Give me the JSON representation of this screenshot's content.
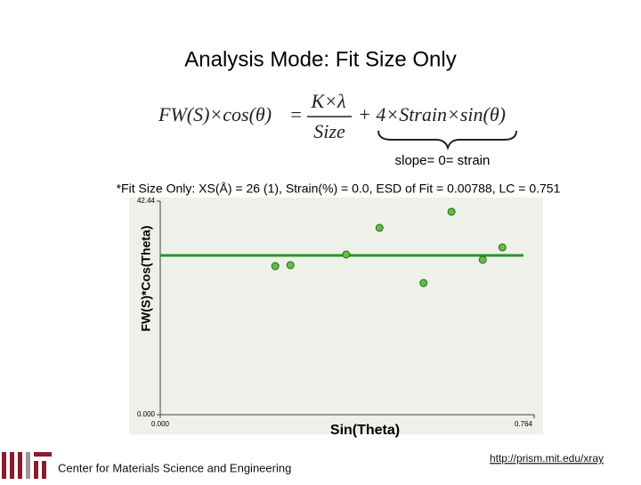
{
  "title": "Analysis Mode: Fit Size Only",
  "equation": {
    "lhs": "FW(S)×cos(θ)",
    "equals": "=",
    "numerator": "K×λ",
    "denominator": "Size",
    "rhs": "+ 4×Strain×sin(θ)"
  },
  "brace_note": "slope= 0= strain",
  "footer": {
    "left": "Center for Materials Science and Engineering",
    "right": "http://prism.mit.edu/xray"
  },
  "chart_data": {
    "type": "scatter",
    "title": "*Fit Size Only: XS(Å) = 26 (1), Strain(%) = 0.0, ESD of Fit = 0.00788, LC = 0.751",
    "x_label": "Sin(Theta)",
    "y_label": "FW(S)*Cos(Theta)",
    "xlim": [
      0,
      0.764
    ],
    "ylim": [
      0,
      42.44
    ],
    "xticks": [
      {
        "value": 0,
        "label": "0.000"
      },
      0.764
    ],
    "yticks": [
      {
        "value": 0,
        "label": "0.000"
      },
      42.44
    ],
    "series": [
      {
        "color": "#66bb44",
        "x": [
          0.235,
          0.266,
          0.38,
          0.448,
          0.538,
          0.595,
          0.659,
          0.699
        ],
        "values": [
          29.53,
          29.71,
          31.83,
          37.13,
          26.17,
          40.32,
          30.77,
          33.24
        ]
      },
      {
        "color": "#229922",
        "x": [
          0,
          0.742
        ],
        "values": [
          31.65,
          31.65
        ]
      }
    ]
  }
}
